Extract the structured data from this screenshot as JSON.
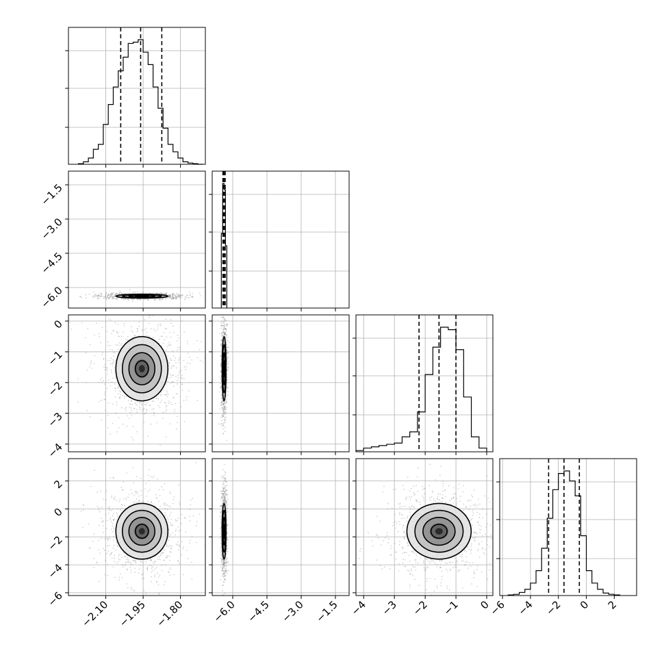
{
  "colors": {
    "background": "#ffffff",
    "line": "#000000",
    "grid": "#b0b0b0",
    "scatter": "#7f7f7f"
  },
  "chart_data": {
    "type": "corner",
    "grid": true,
    "legend": "none",
    "parameters": [
      {
        "name": "",
        "range": [
          -2.25,
          -1.7
        ],
        "ticks": [
          -2.1,
          -1.95,
          -1.8
        ],
        "tick_labels": [
          "−2.10",
          "−1.95",
          "−1.80"
        ],
        "histogram": {
          "bin_edges": [
            -2.21,
            -2.19,
            -2.17,
            -2.15,
            -2.13,
            -2.11,
            -2.09,
            -2.07,
            -2.05,
            -2.03,
            -2.01,
            -1.99,
            -1.97,
            -1.95,
            -1.93,
            -1.91,
            -1.89,
            -1.87,
            -1.85,
            -1.83,
            -1.81,
            -1.79,
            -1.77,
            -1.75,
            -1.73,
            -1.71
          ],
          "counts": [
            0.005,
            0.02,
            0.05,
            0.12,
            0.16,
            0.32,
            0.48,
            0.62,
            0.75,
            0.86,
            0.97,
            0.98,
            1.0,
            0.9,
            0.8,
            0.62,
            0.45,
            0.29,
            0.16,
            0.1,
            0.05,
            0.02,
            0.01,
            0.005,
            0
          ]
        },
        "quantiles": [
          -2.04,
          -1.96,
          -1.875
        ]
      },
      {
        "name": "",
        "range": [
          -6.9,
          -0.9
        ],
        "ticks": [
          -6.0,
          -4.5,
          -3.0,
          -1.5
        ],
        "tick_labels": [
          "−6.0",
          "−4.5",
          "−3.0",
          "−1.5"
        ],
        "histogram": {
          "bin_edges": [
            -6.5,
            -6.44,
            -6.38,
            -6.32,
            -6.26
          ],
          "counts": [
            0.6,
            1.0,
            0.95,
            0.5
          ]
        },
        "quantiles": [
          -6.43,
          -6.38,
          -6.33
        ]
      },
      {
        "name": "",
        "range": [
          -4.25,
          0.2
        ],
        "ticks": [
          -4,
          -3,
          -2,
          -1,
          0
        ],
        "tick_labels": [
          "−4",
          "−3",
          "−2",
          "−1",
          "0"
        ],
        "histogram": {
          "bin_edges": [
            -4.25,
            -4.0,
            -3.75,
            -3.5,
            -3.25,
            -3.0,
            -2.75,
            -2.5,
            -2.25,
            -2.0,
            -1.75,
            -1.5,
            -1.25,
            -1.0,
            -0.75,
            -0.5,
            -0.25,
            0.0
          ],
          "counts": [
            0.01,
            0.03,
            0.04,
            0.05,
            0.06,
            0.07,
            0.12,
            0.16,
            0.32,
            0.62,
            0.84,
            1.0,
            0.98,
            0.82,
            0.44,
            0.12,
            0.03
          ]
        },
        "quantiles": [
          -2.2,
          -1.55,
          -1.0
        ]
      },
      {
        "name": "",
        "range": [
          -6.2,
          3.6
        ],
        "ticks": [
          -6,
          -4,
          -2,
          0,
          2
        ],
        "tick_labels": [
          "−6",
          "−4",
          "−2",
          "0",
          "2"
        ],
        "histogram": {
          "bin_edges": [
            -5.6,
            -5.2,
            -4.8,
            -4.4,
            -4.0,
            -3.6,
            -3.2,
            -2.8,
            -2.4,
            -2.0,
            -1.6,
            -1.2,
            -0.8,
            -0.4,
            0.0,
            0.4,
            0.8,
            1.2,
            1.6,
            2.0,
            2.4
          ],
          "counts": [
            0.005,
            0.01,
            0.025,
            0.05,
            0.1,
            0.2,
            0.38,
            0.62,
            0.85,
            0.98,
            1.0,
            0.92,
            0.8,
            0.48,
            0.2,
            0.1,
            0.05,
            0.02,
            0.01,
            0.005
          ]
        },
        "quantiles": [
          -2.7,
          -1.6,
          -0.5
        ]
      }
    ],
    "pairs": [
      {
        "row": 1,
        "col": 0,
        "center": [
          -1.955,
          -6.38
        ],
        "sigma": [
          0.055,
          0.045
        ],
        "rho": 0
      },
      {
        "row": 2,
        "col": 0,
        "center": [
          -1.955,
          -1.55
        ],
        "sigma": [
          0.055,
          0.55
        ],
        "rho": 0
      },
      {
        "row": 2,
        "col": 1,
        "center": [
          -6.38,
          -1.55
        ],
        "sigma": [
          0.045,
          0.55
        ],
        "rho": 0
      },
      {
        "row": 3,
        "col": 0,
        "center": [
          -1.955,
          -1.6
        ],
        "sigma": [
          0.055,
          1.05
        ],
        "rho": 0
      },
      {
        "row": 3,
        "col": 1,
        "center": [
          -6.38,
          -1.6
        ],
        "sigma": [
          0.045,
          1.05
        ],
        "rho": 0
      },
      {
        "row": 3,
        "col": 2,
        "center": [
          -1.55,
          -1.6
        ],
        "sigma": [
          0.55,
          1.05
        ],
        "rho": 0.05
      }
    ],
    "contour_levels_sigma": [
      0.5,
      1.0,
      1.5,
      2.0
    ]
  }
}
